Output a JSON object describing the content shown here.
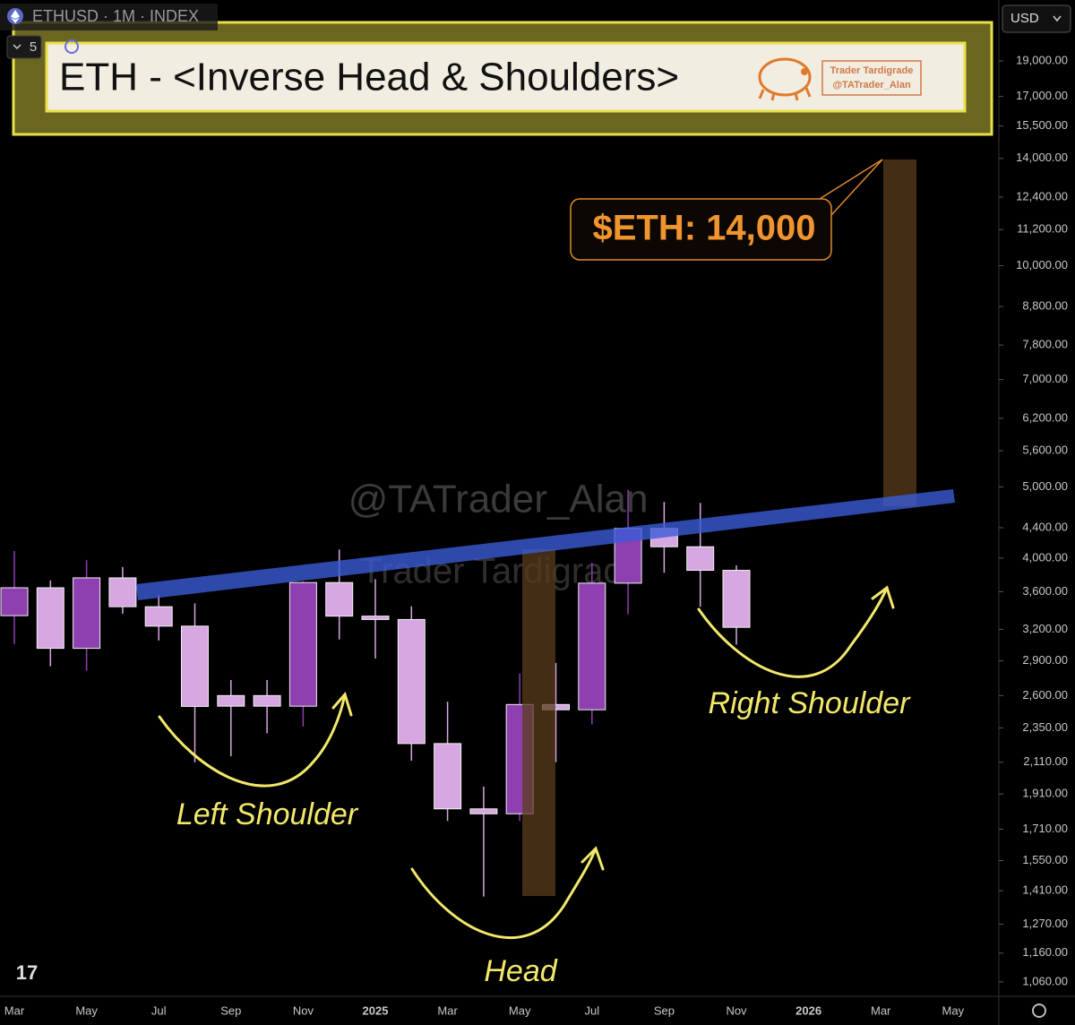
{
  "chart_data": {
    "type": "candlestick",
    "symbol": "ETHUSD · 1M · INDEX",
    "interval_count": "5",
    "currency": "USD",
    "title": "ETH - <Inverse Head & Shoulders>",
    "badge": [
      "Trader Tardigrade",
      "@TATrader_Alan"
    ],
    "watermarks": [
      "@TATrader_Alan",
      "Trader Tardigrade"
    ],
    "target_label": "$ETH: 14,000",
    "annotations": [
      "Left Shoulder",
      "Head",
      "Right Shoulder"
    ],
    "categories": [
      "Mar",
      null,
      "May",
      null,
      "Jul",
      null,
      "Sep",
      null,
      "Nov",
      null,
      "2025",
      null,
      "Mar",
      null,
      "May",
      null,
      "Jul",
      null,
      "Sep",
      null,
      "Nov",
      null,
      "2026",
      null,
      "Mar",
      null,
      "May"
    ],
    "open": [
      3340,
      3645,
      3015,
      3760,
      3435,
      3232,
      2600,
      2600,
      2515,
      3705,
      3335,
      3300,
      2237,
      1823,
      1795,
      2528,
      2487,
      3698,
      4390,
      4145,
      3850,
      null,
      null,
      null,
      null,
      null,
      null
    ],
    "high": [
      4090,
      3730,
      3975,
      3890,
      3560,
      3470,
      2730,
      2730,
      3720,
      4110,
      3745,
      3440,
      2550,
      1955,
      2788,
      2880,
      3940,
      4955,
      4770,
      4755,
      3910,
      null,
      null,
      null,
      null,
      null,
      null
    ],
    "low": [
      3055,
      2850,
      2810,
      3360,
      3090,
      2110,
      2150,
      2310,
      2360,
      3100,
      2920,
      2120,
      1755,
      1385,
      1755,
      2110,
      2375,
      3355,
      3820,
      3435,
      3050,
      null,
      null,
      null,
      null,
      null,
      null
    ],
    "close": [
      3645,
      3015,
      3760,
      3435,
      3232,
      2513,
      2515,
      2515,
      3705,
      3335,
      3300,
      2237,
      1823,
      1795,
      2528,
      2487,
      3698,
      4390,
      4145,
      3850,
      3220,
      null,
      null,
      null,
      null,
      null,
      null
    ],
    "up_color": "#8e3fb0",
    "down_color": "#d6a7e0",
    "y_scale": "log",
    "ylim": [
      1013,
      23000
    ],
    "yticks": [
      {
        "value": 19000,
        "label": "19,000.00"
      },
      {
        "value": 17000,
        "label": "17,000.00"
      },
      {
        "value": 15500,
        "label": "15,500.00"
      },
      {
        "value": 14000,
        "label": "14,000.00"
      },
      {
        "value": 12400,
        "label": "12,400.00"
      },
      {
        "value": 11200,
        "label": "11,200.00"
      },
      {
        "value": 10000,
        "label": "10,000.00"
      },
      {
        "value": 8800,
        "label": "8,800.00"
      },
      {
        "value": 7800,
        "label": "7,800.00"
      },
      {
        "value": 7000,
        "label": "7,000.00"
      },
      {
        "value": 6200,
        "label": "6,200.00"
      },
      {
        "value": 5600,
        "label": "5,600.00"
      },
      {
        "value": 5000,
        "label": "5,000.00"
      },
      {
        "value": 4400,
        "label": "4,400.00"
      },
      {
        "value": 4000,
        "label": "4,000.00"
      },
      {
        "value": 3600,
        "label": "3,600.00"
      },
      {
        "value": 3200,
        "label": "3,200.00"
      },
      {
        "value": 2900,
        "label": "2,900.00"
      },
      {
        "value": 2600,
        "label": "2,600.00"
      },
      {
        "value": 2350,
        "label": "2,350.00"
      },
      {
        "value": 2110,
        "label": "2,110.00"
      },
      {
        "value": 1910,
        "label": "1,910.00"
      },
      {
        "value": 1710,
        "label": "1,710.00"
      },
      {
        "value": 1550,
        "label": "1,550.00"
      },
      {
        "value": 1410,
        "label": "1,410.00"
      },
      {
        "value": 1270,
        "label": "1,270.00"
      },
      {
        "value": 1160,
        "label": "1,160.00"
      },
      {
        "value": 1060,
        "label": "1,060.00"
      }
    ],
    "grid": false
  }
}
